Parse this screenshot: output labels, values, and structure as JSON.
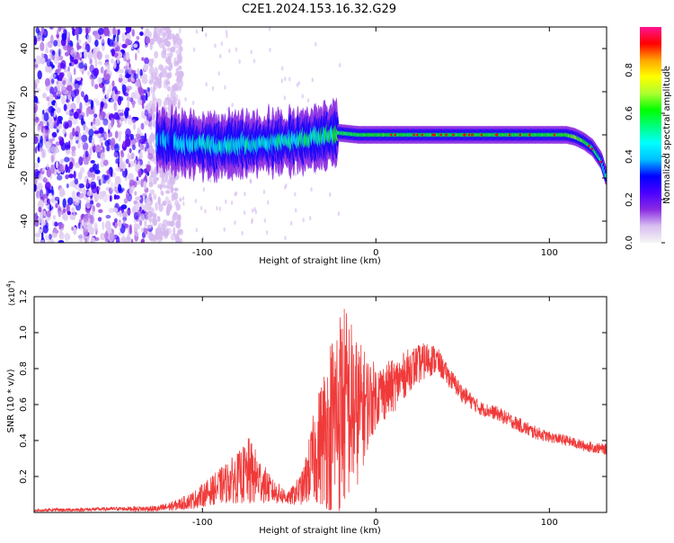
{
  "figure": {
    "title": "C2E1.2024.153.16.32.G29"
  },
  "chart_data": [
    {
      "type": "heatmap",
      "xlabel": "Height of straight line (km)",
      "ylabel": "Frequency (Hz)",
      "xlim": [
        -197,
        133
      ],
      "ylim": [
        -50,
        50
      ],
      "xticks": [
        -100,
        0,
        100
      ],
      "yticks": [
        -40,
        -20,
        0,
        20,
        40
      ],
      "grid": false,
      "colorbar": {
        "label": "Normalized spectral amplitude",
        "range": [
          0,
          1
        ],
        "ticks": [
          "0.0",
          "0.2",
          "0.4",
          "0.6",
          "0.8"
        ],
        "colormap": [
          "#f5f5f5",
          "#d8bff0",
          "#8a2be2",
          "#4b00ff",
          "#0000ff",
          "#00bfff",
          "#00ffff",
          "#00ff7f",
          "#00ff00",
          "#adff2f",
          "#ffff00",
          "#ffa500",
          "#ff0000",
          "#ff1493"
        ]
      },
      "ridge": {
        "x": [
          -126,
          -110,
          -90,
          -70,
          -50,
          -30,
          -22,
          -10,
          0,
          20,
          40,
          60,
          80,
          100,
          110,
          115,
          120,
          125,
          130,
          133
        ],
        "frequency": [
          -2,
          -4,
          -5,
          -4,
          -3,
          -1,
          1,
          0,
          0,
          0,
          0,
          0,
          0,
          0,
          0,
          -1,
          -3,
          -6,
          -12,
          -20
        ],
        "amplitude": [
          0.4,
          0.45,
          0.5,
          0.5,
          0.55,
          0.6,
          0.75,
          0.8,
          0.85,
          0.8,
          0.82,
          0.82,
          0.82,
          0.82,
          0.85,
          0.9,
          0.85,
          0.8,
          0.7,
          0.6
        ]
      },
      "noise_region": {
        "x_from": -197,
        "x_to": -120
      }
    },
    {
      "type": "line",
      "xlabel": "Height of straight line (km)",
      "ylabel": "SNR (10 * v/v)",
      "y_multiplier": "(x10",
      "y_multiplier_exp": "4",
      "xlim": [
        -197,
        133
      ],
      "ylim": [
        0,
        1.2
      ],
      "xticks": [
        -100,
        0,
        100
      ],
      "yticks": [
        "0.2",
        "0.4",
        "0.6",
        "0.8",
        "1.0",
        "1.2"
      ],
      "grid": false,
      "color": "#f03a3a",
      "envelope": {
        "x": [
          -197,
          -150,
          -125,
          -115,
          -105,
          -95,
          -85,
          -78,
          -73,
          -68,
          -60,
          -50,
          -42,
          -36,
          -30,
          -24,
          -20,
          -16,
          -12,
          -8,
          -4,
          0,
          10,
          20,
          30,
          35,
          40,
          50,
          60,
          70,
          80,
          90,
          100,
          110,
          120,
          133
        ],
        "y_base": [
          0.01,
          0.02,
          0.02,
          0.04,
          0.07,
          0.12,
          0.17,
          0.2,
          0.22,
          0.19,
          0.12,
          0.08,
          0.14,
          0.3,
          0.42,
          0.52,
          0.58,
          0.6,
          0.55,
          0.58,
          0.62,
          0.65,
          0.7,
          0.8,
          0.85,
          0.85,
          0.78,
          0.66,
          0.58,
          0.55,
          0.5,
          0.45,
          0.42,
          0.4,
          0.37,
          0.35
        ],
        "y_spread": [
          0.01,
          0.01,
          0.02,
          0.03,
          0.05,
          0.08,
          0.12,
          0.15,
          0.2,
          0.14,
          0.07,
          0.04,
          0.1,
          0.25,
          0.4,
          0.55,
          0.6,
          0.55,
          0.45,
          0.35,
          0.25,
          0.18,
          0.15,
          0.12,
          0.1,
          0.08,
          0.06,
          0.05,
          0.04,
          0.04,
          0.04,
          0.04,
          0.03,
          0.03,
          0.03,
          0.03
        ]
      }
    }
  ]
}
